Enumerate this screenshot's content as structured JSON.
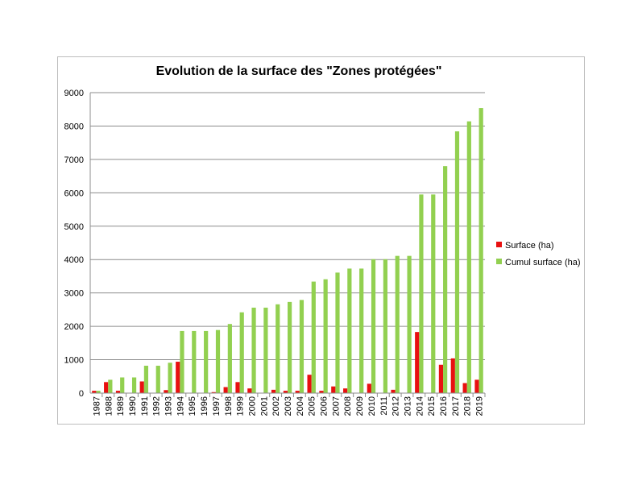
{
  "chart_data": {
    "type": "bar",
    "title": "Evolution de la surface des \"Zones protégées\"",
    "xlabel": "",
    "ylabel": "",
    "ylim": [
      0,
      9000
    ],
    "yticks": [
      0,
      1000,
      2000,
      3000,
      4000,
      5000,
      6000,
      7000,
      8000,
      9000
    ],
    "grid": "horizontal",
    "legend_position": "right",
    "categories": [
      "1987",
      "1988",
      "1989",
      "1990",
      "1991",
      "1992",
      "1993",
      "1994",
      "1995",
      "1996",
      "1997",
      "1998",
      "1999",
      "2000",
      "2001",
      "2002",
      "2003",
      "2004",
      "2005",
      "2006",
      "2007",
      "2008",
      "2009",
      "2010",
      "2011",
      "2012",
      "2013",
      "2014",
      "2015",
      "2016",
      "2017",
      "2018",
      "2019"
    ],
    "series": [
      {
        "name": "Surface (ha)",
        "color": "#e81010",
        "values": [
          70,
          330,
          70,
          0,
          350,
          0,
          90,
          940,
          0,
          0,
          30,
          180,
          330,
          140,
          0,
          100,
          70,
          70,
          550,
          70,
          200,
          140,
          0,
          280,
          0,
          100,
          0,
          1830,
          0,
          850,
          1040,
          300,
          400
        ]
      },
      {
        "name": "Cumul surface (ha)",
        "color": "#92d050",
        "values": [
          70,
          400,
          470,
          470,
          820,
          820,
          910,
          1860,
          1860,
          1860,
          1890,
          2070,
          2420,
          2560,
          2560,
          2660,
          2730,
          2790,
          3340,
          3410,
          3610,
          3730,
          3730,
          4010,
          4010,
          4110,
          4110,
          5950,
          5950,
          6800,
          7840,
          8140,
          8540
        ]
      }
    ]
  }
}
